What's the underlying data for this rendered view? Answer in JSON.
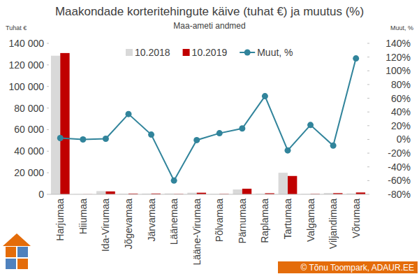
{
  "chart_data": {
    "type": "bar",
    "title": "Maakondade korteritehingute käive (tuhat €) ja muutus (%)",
    "subtitle": "Maa-ameti andmed",
    "y_label": "Tuhat €",
    "y2_label": "Muut, %",
    "annotations": [
      "© Tõnu Toompark, ADAUR.EE"
    ],
    "categories": [
      "Harjumaa",
      "Hiiumaa",
      "Ida-Virumaa",
      "Jõgevamaa",
      "Järvamaa",
      "Läänemaa",
      "Lääne-Virumaa",
      "Põlvamaa",
      "Pärnumaa",
      "Raplamaa",
      "Tartumaa",
      "Valgamaa",
      "Viljandimaa",
      "Võrumaa"
    ],
    "series": [
      {
        "name": "10.2018",
        "type": "bar",
        "color": "#d9d9d9",
        "values": [
          128500,
          100,
          3000,
          500,
          700,
          800,
          1500,
          300,
          4500,
          600,
          20000,
          300,
          1200,
          800
        ]
      },
      {
        "name": "10.2019",
        "type": "bar",
        "color": "#c00000",
        "values": [
          131000,
          100,
          2700,
          700,
          750,
          300,
          1500,
          330,
          5200,
          1000,
          17000,
          350,
          1100,
          1700
        ]
      },
      {
        "name": "Muut, %",
        "type": "line",
        "color": "#31849b",
        "marker": "circle",
        "line_style": "solid",
        "axis": "y2",
        "values": [
          2,
          0,
          1,
          37,
          7,
          -60,
          -1,
          9,
          16,
          63,
          -16,
          21,
          -9,
          118
        ]
      }
    ],
    "ylim": [
      0,
      140000
    ],
    "yticks": [
      0,
      {
        "value": 20000,
        "label": "20 000"
      },
      {
        "value": 40000,
        "label": "40 000"
      },
      {
        "value": 60000,
        "label": "60 000"
      },
      {
        "value": 80000,
        "label": "80 000"
      },
      {
        "value": 100000,
        "label": "100 000"
      },
      {
        "value": 120000,
        "label": "120 000"
      },
      {
        "value": 140000,
        "label": "140 000"
      }
    ],
    "y2lim": [
      -80,
      140
    ],
    "y2ticks": [
      {
        "value": -80,
        "label": "-80%"
      },
      {
        "value": -60,
        "label": "-60%"
      },
      {
        "value": -40,
        "label": "-40%"
      },
      {
        "value": -20,
        "label": "-20%"
      },
      {
        "value": 0,
        "label": "0%"
      },
      {
        "value": 20,
        "label": "20%"
      },
      {
        "value": 40,
        "label": "40%"
      },
      {
        "value": 60,
        "label": "60%"
      },
      {
        "value": 80,
        "label": "80%"
      },
      {
        "value": 100,
        "label": "100%"
      },
      {
        "value": 120,
        "label": "120%"
      },
      {
        "value": 140,
        "label": "140%"
      }
    ],
    "grid": false,
    "legend": "top"
  }
}
